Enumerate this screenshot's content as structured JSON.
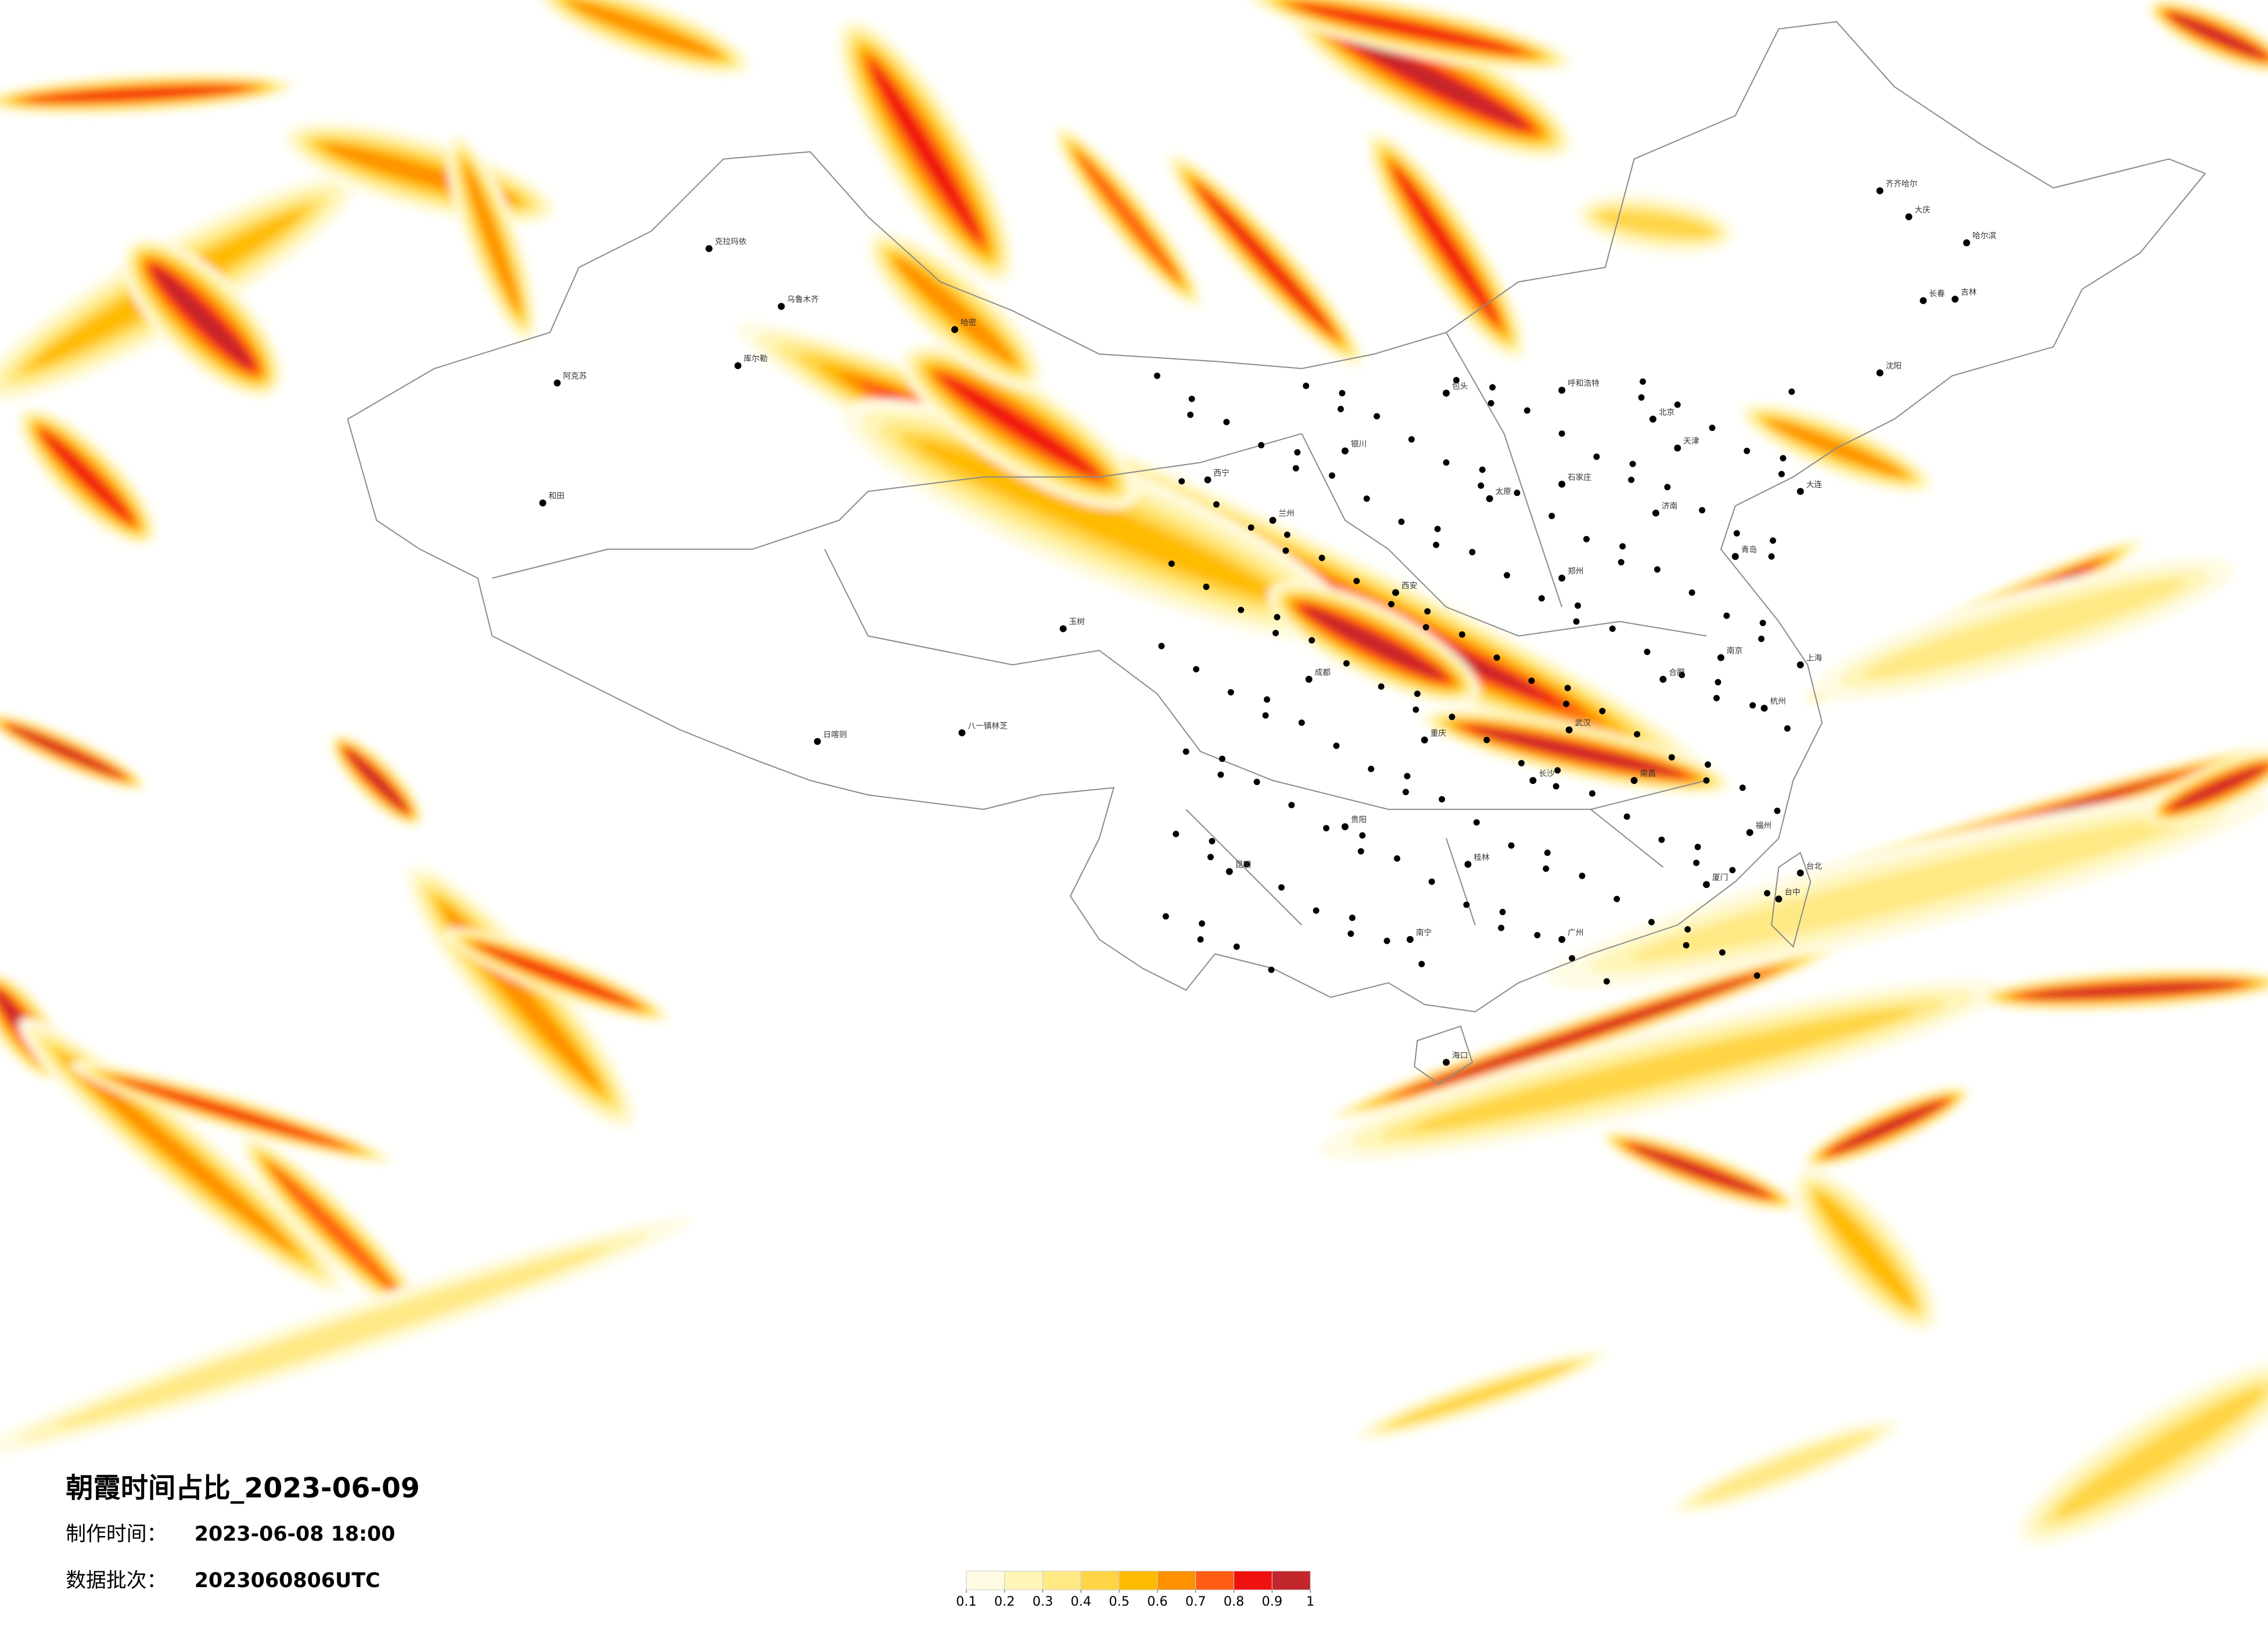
{
  "title": "朝霞时间占比_2023-06-09",
  "info": [
    {
      "label": "制作时间：",
      "value": "2023-06-08 18:00"
    },
    {
      "label": "数据批次：",
      "value": "2023060806UTC"
    }
  ],
  "colorbar": {
    "ticks": [
      0.1,
      0.2,
      0.3,
      0.4,
      0.5,
      0.6,
      0.7,
      0.8,
      0.9,
      1
    ],
    "colors": [
      "#fffbe3",
      "#fff5b8",
      "#ffe985",
      "#ffd545",
      "#ffbb00",
      "#ff9000",
      "#ff5c14",
      "#f01010",
      "#c1272d"
    ]
  },
  "cities": [
    "哈尔滨",
    "齐齐哈尔",
    "大庆",
    "长春",
    "吉林",
    "沈阳",
    "大连",
    "呼和浩特",
    "包头",
    "银川",
    "西宁",
    "兰州",
    "乌鲁木齐",
    "克拉玛依",
    "阿克苏",
    "和田",
    "库尔勒",
    "哈密",
    "日喀则",
    "八一镇林芝",
    "玉树",
    "重庆",
    "成都",
    "昆明",
    "贵阳",
    "南宁",
    "桂林",
    "广州",
    "福州",
    "厦门",
    "台北",
    "台中",
    "杭州",
    "上海",
    "南京",
    "合肥",
    "武汉",
    "长沙",
    "南昌",
    "郑州",
    "济南",
    "石家庄",
    "太原",
    "西安",
    "北京",
    "天津",
    "青岛",
    "海口"
  ]
}
